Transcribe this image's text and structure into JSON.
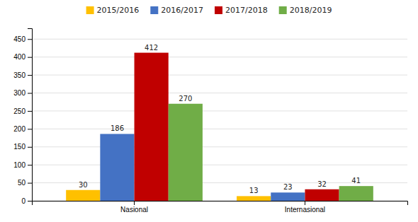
{
  "chart_data": {
    "type": "bar",
    "categories": [
      "Nasional",
      "Internasional"
    ],
    "series": [
      {
        "name": "2015/2016",
        "color": "#FFC000",
        "values": [
          30,
          13
        ]
      },
      {
        "name": "2016/2017",
        "color": "#4472C4",
        "values": [
          186,
          23
        ]
      },
      {
        "name": "2017/2018",
        "color": "#C00000",
        "values": [
          412,
          32
        ]
      },
      {
        "name": "2018/2019",
        "color": "#70AD47",
        "values": [
          270,
          41
        ]
      }
    ],
    "ylim": [
      0,
      480
    ],
    "yticks": [
      0,
      50,
      100,
      150,
      200,
      250,
      300,
      350,
      400,
      450
    ],
    "grid": true,
    "legend": "top",
    "data_labels": true
  }
}
